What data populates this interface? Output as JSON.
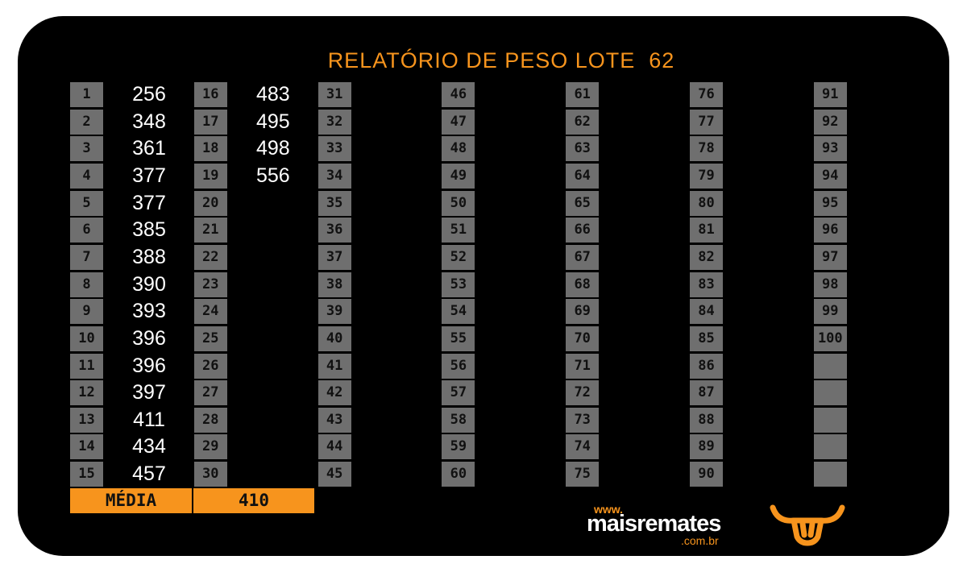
{
  "title": "RELATÓRIO DE PESO LOTE  62",
  "columns": [
    {
      "numbers": [
        1,
        2,
        3,
        4,
        5,
        6,
        7,
        8,
        9,
        10,
        11,
        12,
        13,
        14,
        15
      ],
      "weights": [
        256,
        348,
        361,
        377,
        377,
        385,
        388,
        390,
        393,
        396,
        396,
        397,
        411,
        434,
        457
      ]
    },
    {
      "numbers": [
        16,
        17,
        18,
        19,
        20,
        21,
        22,
        23,
        24,
        25,
        26,
        27,
        28,
        29,
        30
      ],
      "weights": [
        483,
        495,
        498,
        556
      ]
    },
    {
      "numbers": [
        31,
        32,
        33,
        34,
        35,
        36,
        37,
        38,
        39,
        40,
        41,
        42,
        43,
        44,
        45
      ]
    },
    {
      "numbers": [
        46,
        47,
        48,
        49,
        50,
        51,
        52,
        53,
        54,
        55,
        56,
        57,
        58,
        59,
        60
      ]
    },
    {
      "numbers": [
        61,
        62,
        63,
        64,
        65,
        66,
        67,
        68,
        69,
        70,
        71,
        72,
        73,
        74,
        75
      ]
    },
    {
      "numbers": [
        76,
        77,
        78,
        79,
        80,
        81,
        82,
        83,
        84,
        85,
        86,
        87,
        88,
        89,
        90
      ]
    },
    {
      "numbers": [
        91,
        92,
        93,
        94,
        95,
        96,
        97,
        98,
        99,
        100
      ]
    }
  ],
  "average": {
    "label": "MÉDIA",
    "value": 410
  },
  "logo": {
    "prefix": "www.",
    "name": "maisremates",
    "suffix": ".com.br"
  }
}
